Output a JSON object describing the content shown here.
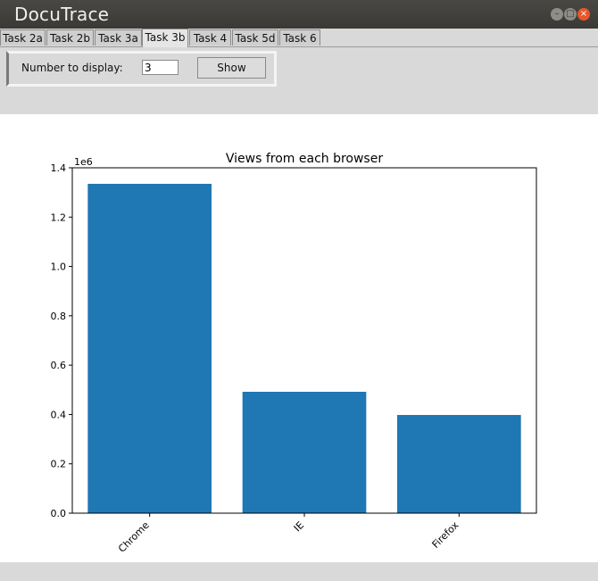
{
  "window": {
    "title": "DocuTrace"
  },
  "tabs": [
    {
      "label": "Task 2a",
      "active": false
    },
    {
      "label": "Task 2b",
      "active": false
    },
    {
      "label": "Task 3a",
      "active": false
    },
    {
      "label": "Task 3b",
      "active": true
    },
    {
      "label": "Task 4",
      "active": false
    },
    {
      "label": "Task 5d",
      "active": false
    },
    {
      "label": "Task 6",
      "active": false
    }
  ],
  "controls": {
    "number_label": "Number to display:",
    "number_value": "3",
    "show_label": "Show"
  },
  "chart_data": {
    "type": "bar",
    "title": "Views from each browser",
    "categories": [
      "Chrome",
      "IE",
      "Firefox"
    ],
    "values": [
      1335000,
      492000,
      398000
    ],
    "ylim": [
      0,
      1400000
    ],
    "yticks": [
      0,
      200000,
      400000,
      600000,
      800000,
      1000000,
      1200000,
      1400000
    ],
    "ytick_labels": [
      "0.0",
      "0.2",
      "0.4",
      "0.6",
      "0.8",
      "1.0",
      "1.2",
      "1.4"
    ],
    "offset_label": "1e6",
    "bar_color": "#1f77b4",
    "grid": false
  }
}
